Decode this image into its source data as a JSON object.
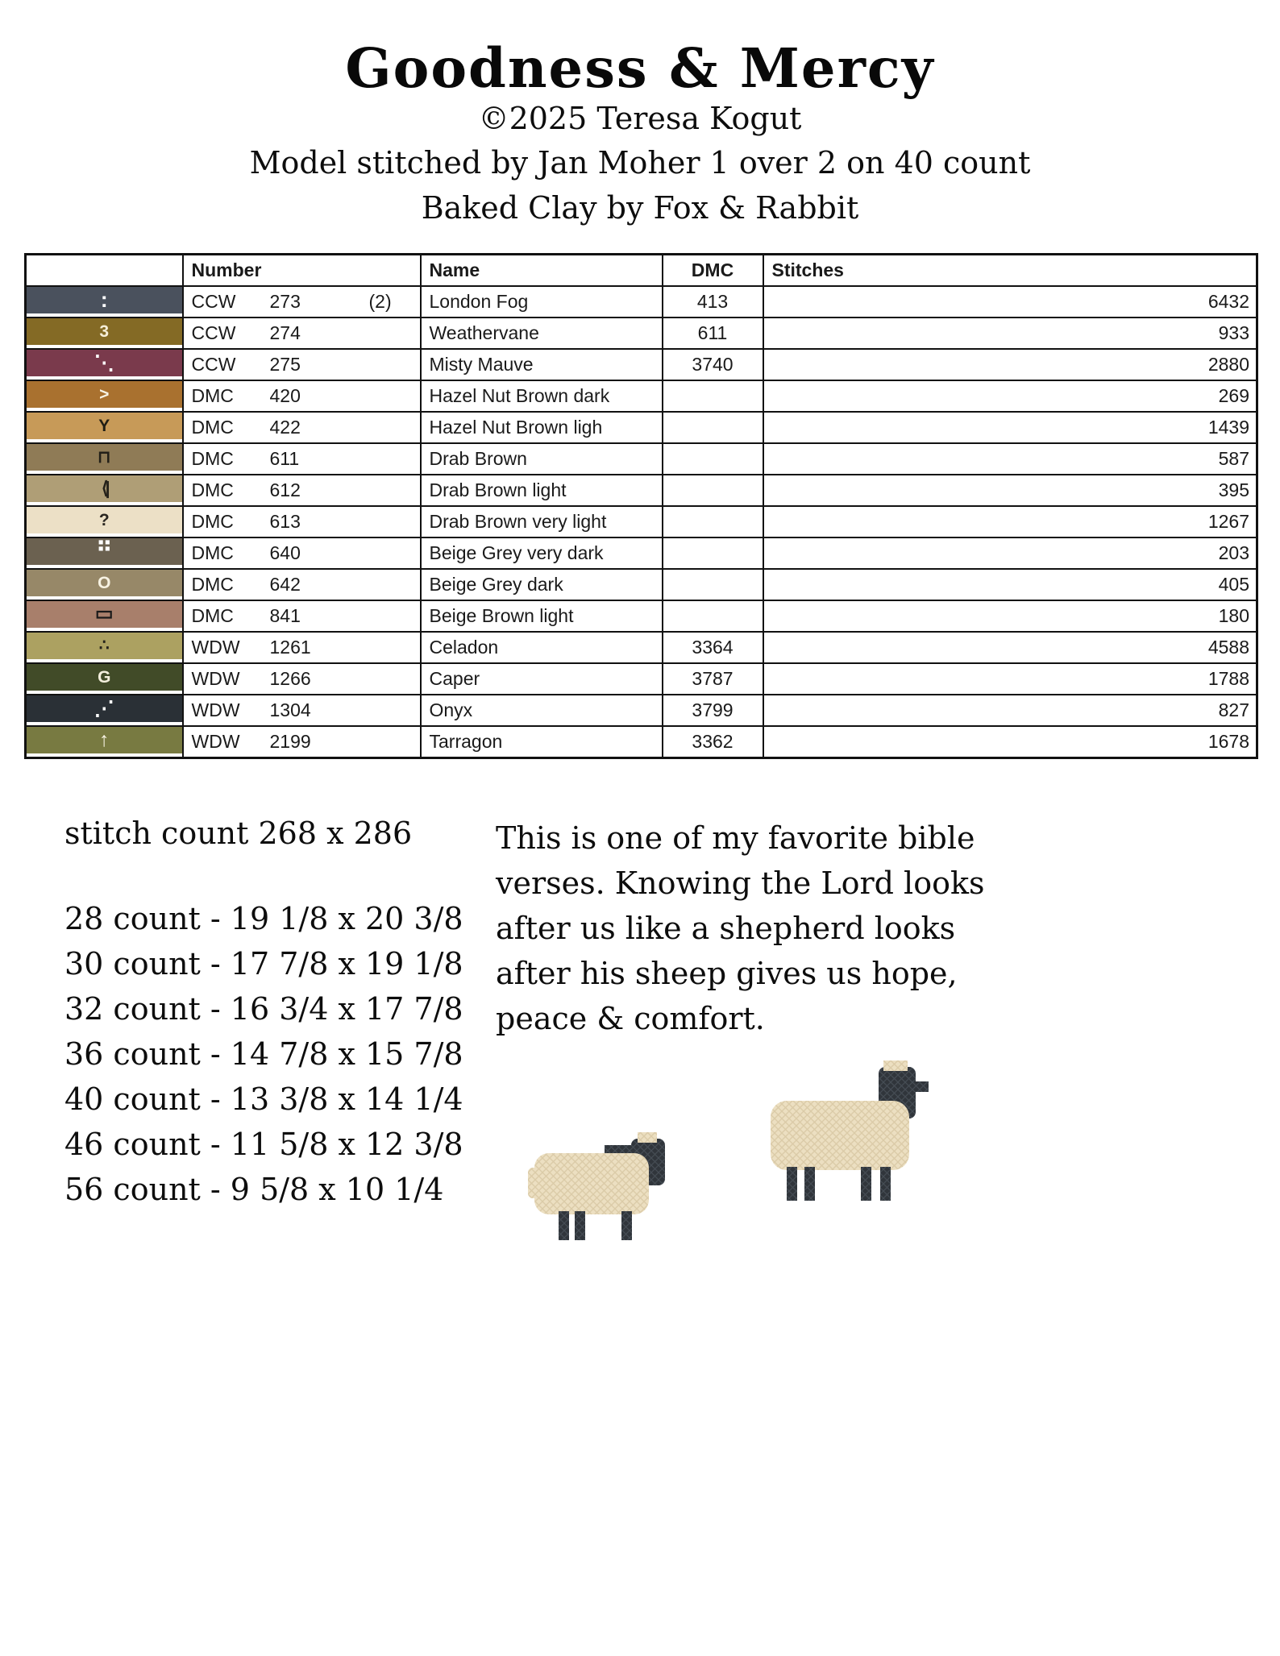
{
  "header": {
    "title": "Goodness & Mercy",
    "copyright": "©2025 Teresa Kogut",
    "model_line": "Model stitched by Jan Moher 1 over 2 on 40 count",
    "fabric_line": "Baked Clay by Fox & Rabbit"
  },
  "legend_table": {
    "columns": [
      "",
      "Number",
      "Name",
      "DMC",
      "Stitches"
    ],
    "rows": [
      {
        "symbol": ":",
        "symbol_color": "#ffffff",
        "swatch": "#4a515d",
        "brand": "CCW",
        "code": "273",
        "extra": "(2)",
        "name": "London Fog",
        "dmc": "413",
        "stitches": "6432"
      },
      {
        "symbol": "3",
        "symbol_color": "#f5eed8",
        "swatch": "#846a25",
        "brand": "CCW",
        "code": "274",
        "extra": "",
        "name": "Weathervane",
        "dmc": "611",
        "stitches": "933"
      },
      {
        "symbol": "⋱",
        "symbol_color": "#ffffff",
        "swatch": "#7a3a4c",
        "brand": "CCW",
        "code": "275",
        "extra": "",
        "name": "Misty Mauve",
        "dmc": "3740",
        "stitches": "2880"
      },
      {
        "symbol": ">",
        "symbol_color": "#f7f3e4",
        "swatch": "#a9712f",
        "brand": "DMC",
        "code": "420",
        "extra": "",
        "name": "Hazel Nut Brown dark",
        "dmc": "",
        "stitches": "269"
      },
      {
        "symbol": "Y",
        "symbol_color": "#201d14",
        "swatch": "#c79a58",
        "brand": "DMC",
        "code": "422",
        "extra": "",
        "name": "Hazel Nut Brown ligh",
        "dmc": "",
        "stitches": "1439"
      },
      {
        "symbol": "⊓",
        "symbol_color": "#221f18",
        "swatch": "#8f7b56",
        "brand": "DMC",
        "code": "611",
        "extra": "",
        "name": "Drab Brown",
        "dmc": "",
        "stitches": "587"
      },
      {
        "symbol": "⟨|",
        "symbol_color": "#25221a",
        "swatch": "#af9e76",
        "brand": "DMC",
        "code": "612",
        "extra": "",
        "name": "Drab Brown light",
        "dmc": "",
        "stitches": "395"
      },
      {
        "symbol": "?",
        "symbol_color": "#2a2620",
        "swatch": "#ece0c6",
        "brand": "DMC",
        "code": "613",
        "extra": "",
        "name": "Drab Brown very light",
        "dmc": "",
        "stitches": "1267"
      },
      {
        "symbol": "⠛",
        "symbol_color": "#ffffff",
        "swatch": "#6b6150",
        "brand": "DMC",
        "code": "640",
        "extra": "",
        "name": "Beige Grey very dark",
        "dmc": "",
        "stitches": "203"
      },
      {
        "symbol": "O",
        "symbol_color": "#f7f2e2",
        "swatch": "#978868",
        "brand": "DMC",
        "code": "642",
        "extra": "",
        "name": "Beige Grey dark",
        "dmc": "",
        "stitches": "405"
      },
      {
        "symbol": "▭",
        "symbol_color": "#1a1a1a",
        "swatch": "#a87f6b",
        "brand": "DMC",
        "code": "841",
        "extra": "",
        "name": "Beige Brown light",
        "dmc": "",
        "stitches": "180"
      },
      {
        "symbol": "∴",
        "symbol_color": "#23211a",
        "swatch": "#aca161",
        "brand": "WDW",
        "code": "1261",
        "extra": "",
        "name": "Celadon",
        "dmc": "3364",
        "stitches": "4588"
      },
      {
        "symbol": "G",
        "symbol_color": "#f3efdd",
        "swatch": "#414b28",
        "brand": "WDW",
        "code": "1266",
        "extra": "",
        "name": "Caper",
        "dmc": "3787",
        "stitches": "1788"
      },
      {
        "symbol": "⋰",
        "symbol_color": "#ffffff",
        "swatch": "#2a3036",
        "brand": "WDW",
        "code": "1304",
        "extra": "",
        "name": "Onyx",
        "dmc": "3799",
        "stitches": "827"
      },
      {
        "symbol": "↑",
        "symbol_color": "#f6f2e3",
        "swatch": "#787a41",
        "brand": "WDW",
        "code": "2199",
        "extra": "",
        "name": "Tarragon",
        "dmc": "3362",
        "stitches": "1678"
      }
    ]
  },
  "details": {
    "stitch_count": "stitch count 268 x 286",
    "count_lines": [
      "28 count - 19 1/8 x 20 3/8",
      "30 count - 17 7/8 x 19 1/8",
      "32 count - 16 3/4 x 17 7/8",
      "36 count - 14 7/8 x 15 7/8",
      "40 count - 13 3/8 x 14 1/4",
      "46 count - 11 5/8 x 12 3/8",
      "56 count - 9 5/8 x 10 1/4"
    ]
  },
  "note": {
    "text": "This is one of my favorite bible verses. Knowing the Lord looks after us like a shepherd looks after his sheep gives us hope, peace & comfort."
  },
  "colors": {
    "sheep_body": "#ecdfc1",
    "sheep_dark": "#30353b"
  }
}
